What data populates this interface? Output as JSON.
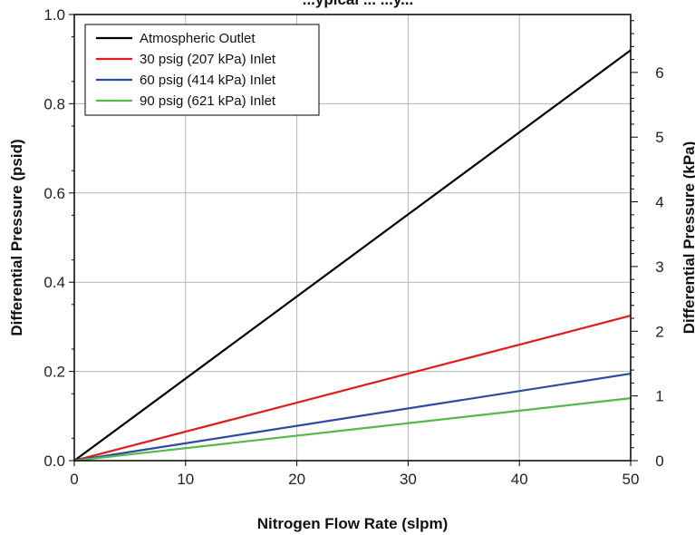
{
  "chart_data": {
    "type": "line",
    "title": "...ypical ... ...y...",
    "xlabel": "Nitrogen Flow Rate (slpm)",
    "ylabel": "Differential Pressure (psid)",
    "y2label": "Differential Pressure (kPa)",
    "xlim": [
      0,
      50
    ],
    "ylim": [
      0,
      1.0
    ],
    "y2lim": [
      0,
      6.895
    ],
    "x_ticks": [
      "0",
      "10",
      "20",
      "30",
      "40",
      "50"
    ],
    "y_ticks": [
      "0.0",
      "0.2",
      "0.4",
      "0.6",
      "0.8",
      "1.0"
    ],
    "y2_ticks": [
      "0",
      "1",
      "2",
      "3",
      "4",
      "5",
      "6"
    ],
    "grid": true,
    "legend_position": "top-left",
    "series": [
      {
        "name": "Atmospheric Outlet",
        "color": "#000000",
        "x": [
          0,
          50
        ],
        "y": [
          0,
          0.92
        ]
      },
      {
        "name": "30 psig (207 kPa) Inlet",
        "color": "#e31a1c",
        "x": [
          0,
          50
        ],
        "y": [
          0,
          0.325
        ]
      },
      {
        "name": "60 psig (414 kPa) Inlet",
        "color": "#2b4ba0",
        "x": [
          0,
          50
        ],
        "y": [
          0,
          0.195
        ]
      },
      {
        "name": "90 psig (621 kPa) Inlet",
        "color": "#55b848",
        "x": [
          0,
          50
        ],
        "y": [
          0,
          0.14
        ]
      }
    ]
  }
}
